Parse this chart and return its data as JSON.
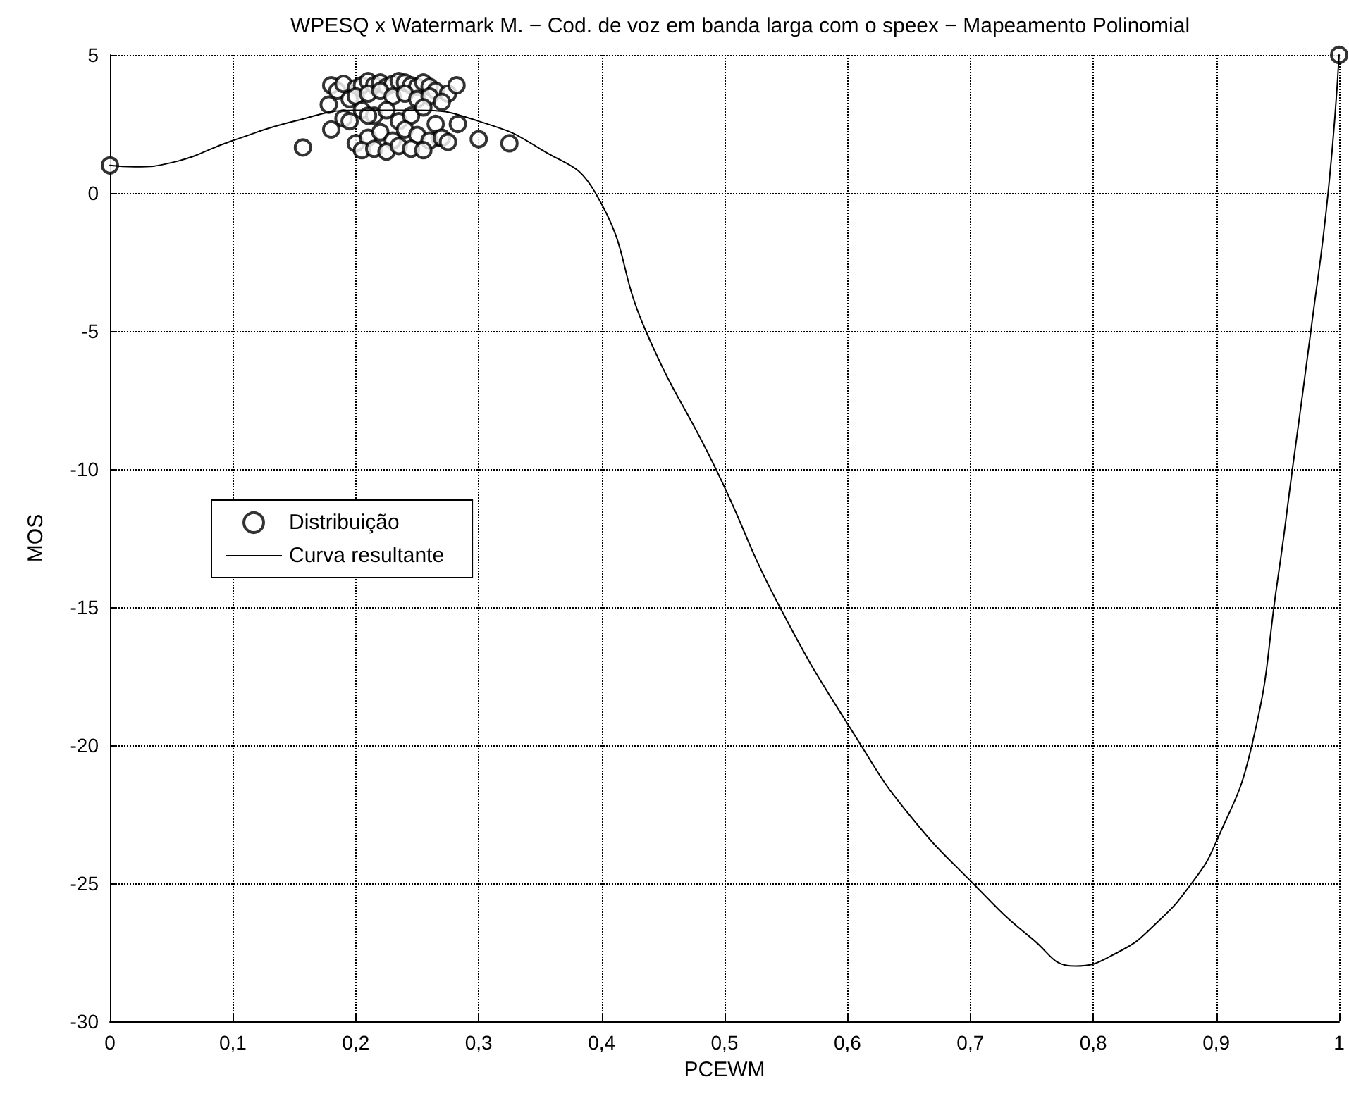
{
  "chart_data": {
    "type": "scatter",
    "title": "WPESQ x Watermark M. − Cod. de voz em banda larga com o speex − Mapeamento Polinomial",
    "xlabel": "PCEWM",
    "ylabel": "MOS",
    "xlim": [
      0,
      1
    ],
    "xticks": [
      {
        "value": 0,
        "label": "0"
      },
      {
        "value": 0.1,
        "label": "0,1"
      },
      {
        "value": 0.2,
        "label": "0,2"
      },
      {
        "value": 0.3,
        "label": "0,3"
      },
      {
        "value": 0.4,
        "label": "0,4"
      },
      {
        "value": 0.5,
        "label": "0,5"
      },
      {
        "value": 0.6,
        "label": "0,6"
      },
      {
        "value": 0.7,
        "label": "0,7"
      },
      {
        "value": 0.8,
        "label": "0,8"
      },
      {
        "value": 0.9,
        "label": "0,9"
      },
      {
        "value": 1,
        "label": "1"
      }
    ],
    "ylim": [
      -30,
      5
    ],
    "yticks": [
      -30,
      -25,
      -20,
      -15,
      -10,
      -5,
      0,
      5
    ],
    "grid": true,
    "legend": "left",
    "series": [
      {
        "name": "Distribuição",
        "marker": "circle",
        "color": "#000000",
        "x": [
          0,
          1,
          0.157,
          0.283,
          0.268,
          0.18,
          0.185,
          0.19,
          0.2,
          0.205,
          0.21,
          0.215,
          0.22,
          0.225,
          0.23,
          0.235,
          0.24,
          0.245,
          0.25,
          0.255,
          0.26,
          0.265,
          0.275,
          0.282,
          0.178,
          0.195,
          0.2,
          0.21,
          0.22,
          0.23,
          0.24,
          0.25,
          0.26,
          0.27,
          0.19,
          0.205,
          0.215,
          0.225,
          0.235,
          0.245,
          0.255,
          0.265,
          0.2,
          0.21,
          0.22,
          0.23,
          0.24,
          0.25,
          0.26,
          0.27,
          0.205,
          0.215,
          0.225,
          0.235,
          0.245,
          0.255,
          0.275,
          0.3,
          0.325,
          0.18,
          0.195,
          0.21
        ],
        "values": [
          1,
          5,
          1.65,
          2.5,
          2.0,
          3.9,
          3.7,
          3.95,
          3.8,
          3.9,
          4.05,
          3.9,
          4.0,
          3.85,
          3.95,
          4.05,
          4.0,
          3.9,
          3.85,
          4.0,
          3.85,
          3.7,
          3.6,
          3.9,
          3.2,
          3.4,
          3.5,
          3.6,
          3.7,
          3.5,
          3.6,
          3.4,
          3.5,
          3.3,
          2.7,
          3.0,
          2.8,
          3.0,
          2.6,
          2.8,
          3.1,
          2.5,
          1.8,
          2.0,
          2.2,
          1.9,
          2.3,
          2.1,
          1.9,
          2.0,
          1.55,
          1.6,
          1.5,
          1.7,
          1.6,
          1.55,
          1.85,
          1.95,
          1.8,
          2.3,
          2.6,
          2.8
        ]
      },
      {
        "name": "Curva resultante",
        "type": "line",
        "marker": "none",
        "line_style": "solid",
        "color": "#000000",
        "x": [
          0,
          0.02,
          0.05,
          0.1,
          0.15,
          0.2,
          0.25,
          0.3,
          0.35,
          0.395,
          0.436,
          0.493,
          0.545,
          0.611,
          0.65,
          0.702,
          0.75,
          0.785,
          0.82,
          0.85,
          0.88,
          0.9,
          0.929,
          0.95,
          0.962,
          0.977,
          0.991,
          1
        ],
        "values": [
          1,
          0.95,
          1.1,
          1.9,
          2.6,
          3.0,
          3.0,
          2.6,
          1.6,
          0,
          -5,
          -10,
          -15,
          -20,
          -22.5,
          -25,
          -27,
          -28,
          -27.5,
          -26.5,
          -25,
          -23.5,
          -20,
          -14,
          -10,
          -5,
          0,
          5
        ]
      }
    ]
  }
}
